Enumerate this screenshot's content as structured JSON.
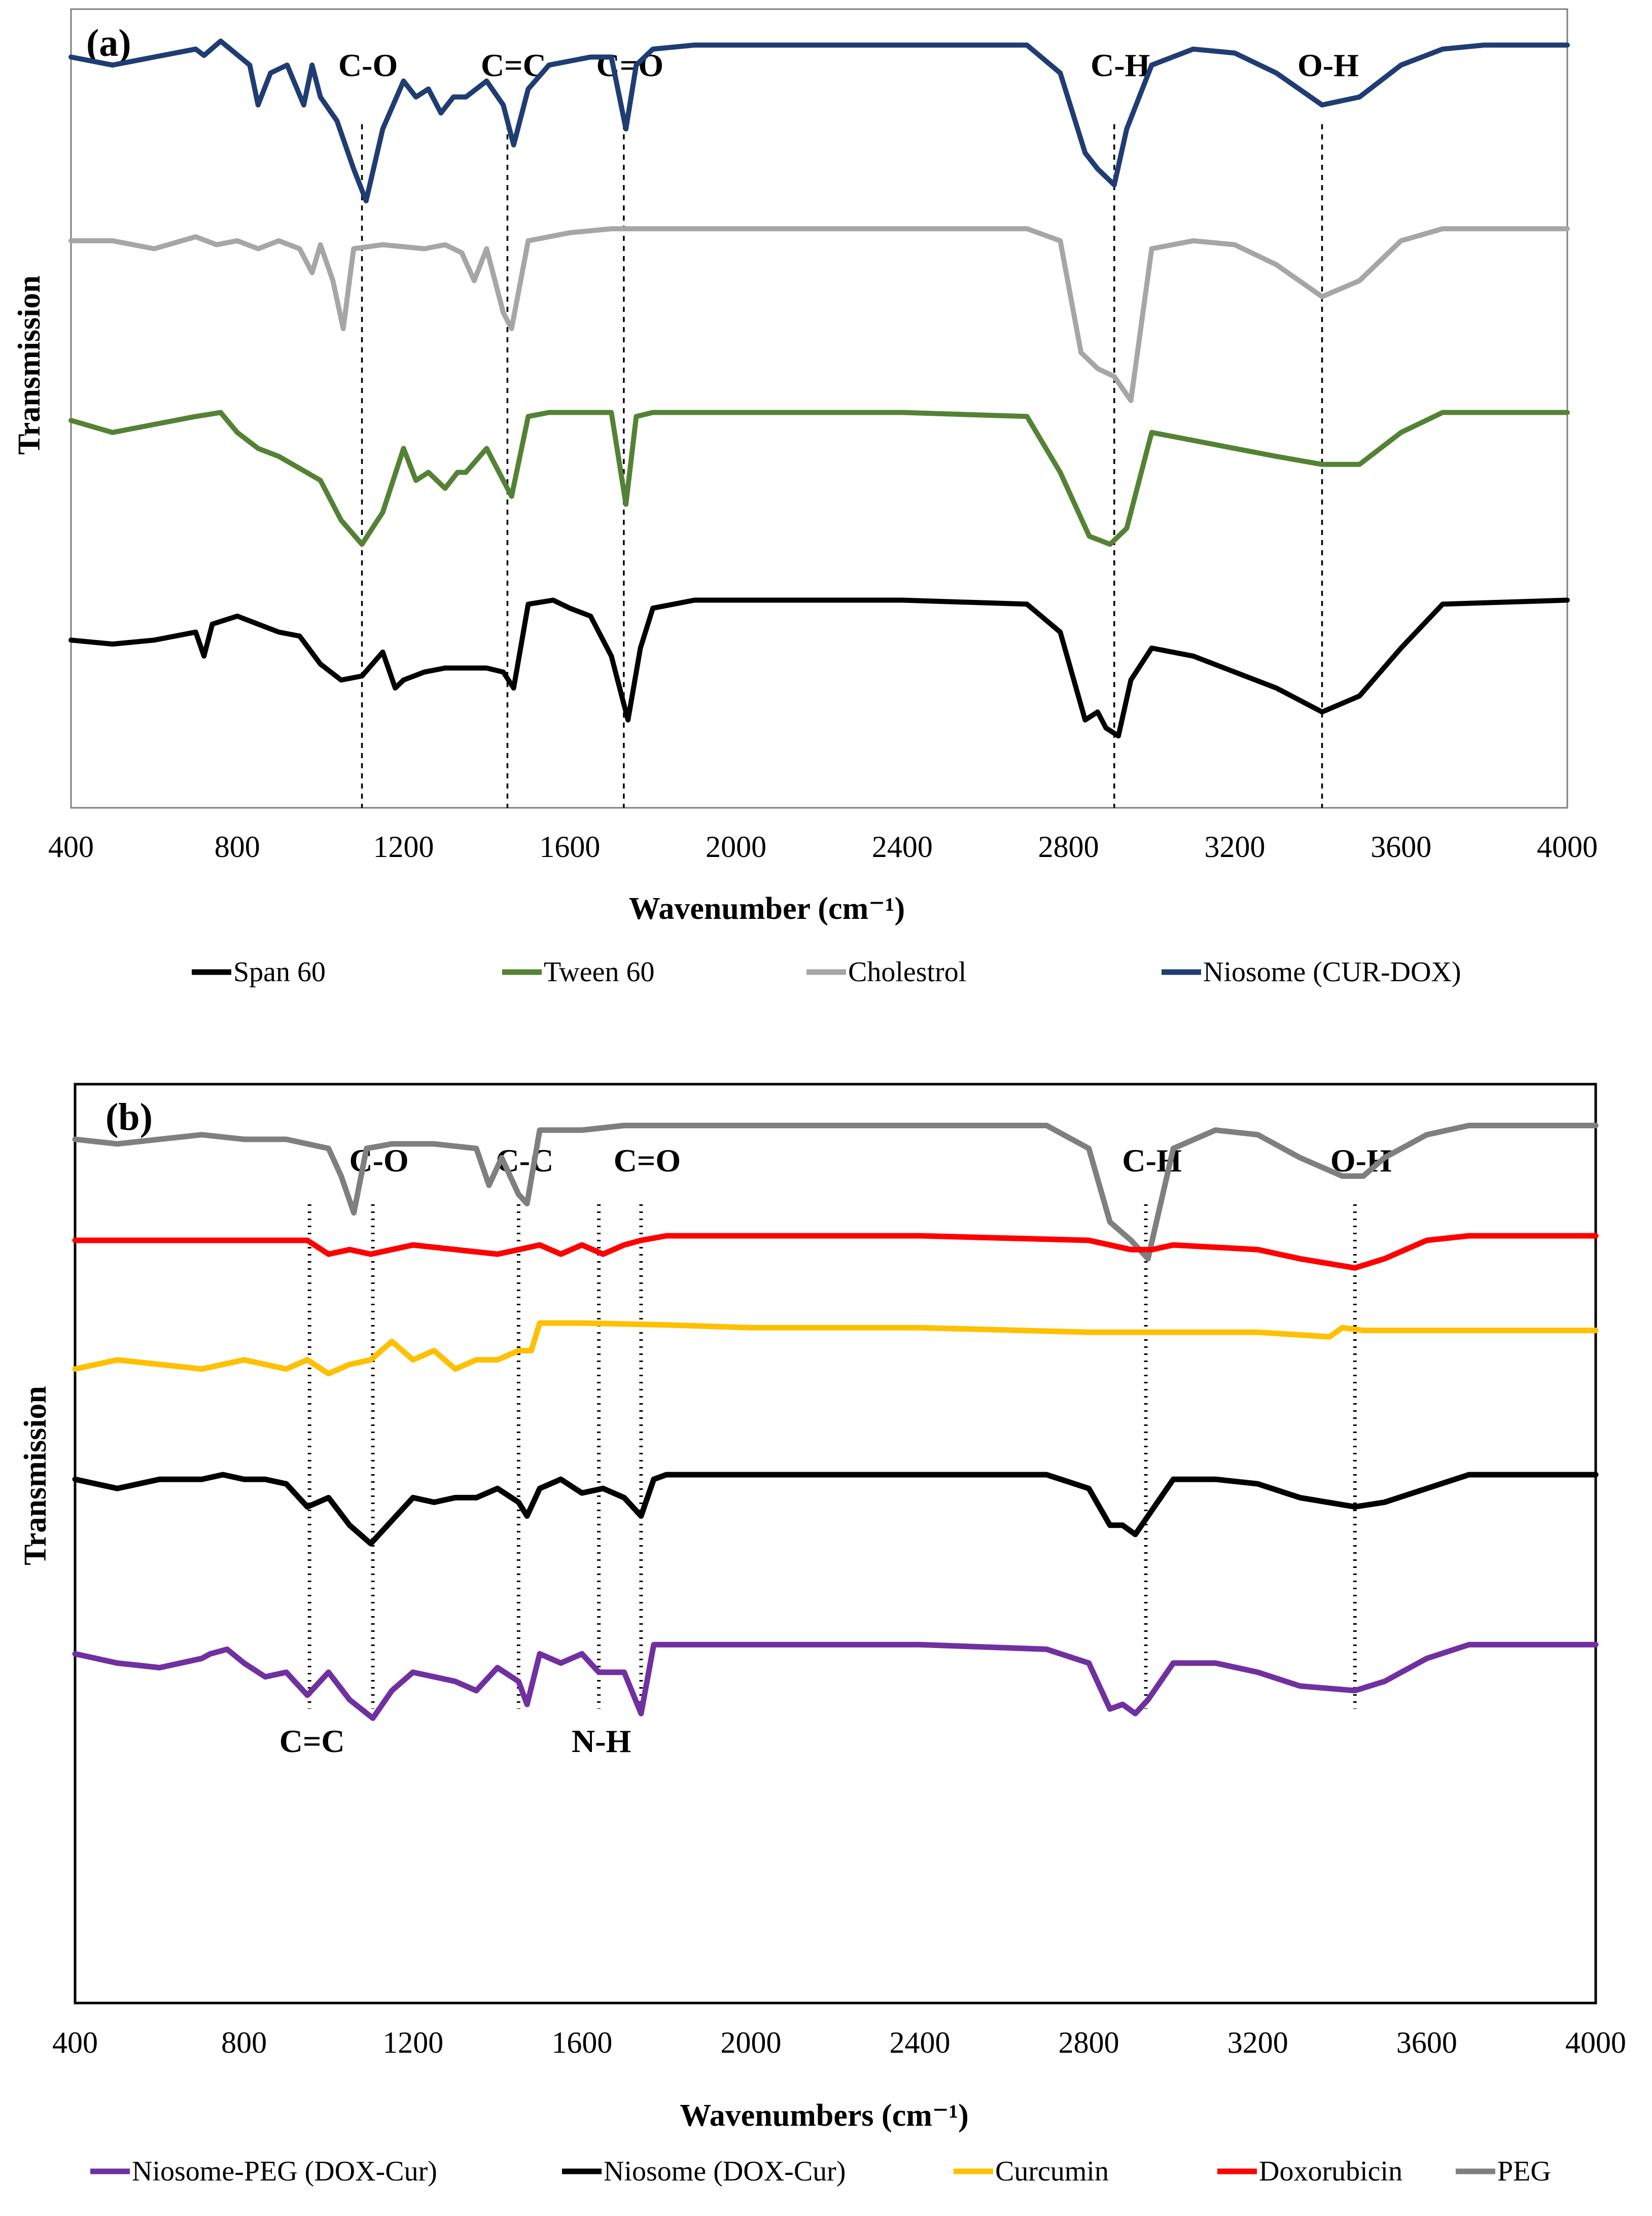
{
  "chart_data": [
    {
      "type": "line",
      "panel": "(a)",
      "xlabel": "Wavenumber (cm⁻¹)",
      "ylabel": "Transmission",
      "xlim": [
        400,
        4000
      ],
      "xticks": [
        400,
        800,
        1200,
        1600,
        2000,
        2400,
        2800,
        3200,
        3600,
        4000
      ],
      "ylim": [
        0,
        100
      ],
      "grid": false,
      "legend_position": "bottom",
      "peak_labels": [
        {
          "label": "C-O",
          "x": 1100,
          "line_style": "dashed"
        },
        {
          "label": "C=C",
          "x": 1450,
          "line_style": "dashed"
        },
        {
          "label": "C=O",
          "x": 1730,
          "line_style": "dashed"
        },
        {
          "label": "C-H",
          "x": 2910,
          "line_style": "dashed"
        },
        {
          "label": "O-H",
          "x": 3410,
          "line_style": "dashed"
        }
      ],
      "series": [
        {
          "name": "Niosome (CUR-DOX)",
          "color": "#1f3d73",
          "x": [
            400,
            500,
            600,
            700,
            720,
            760,
            830,
            850,
            880,
            920,
            960,
            980,
            1000,
            1040,
            1080,
            1110,
            1150,
            1200,
            1230,
            1260,
            1290,
            1320,
            1350,
            1400,
            1440,
            1465,
            1500,
            1550,
            1650,
            1700,
            1735,
            1760,
            1800,
            1900,
            2000,
            2400,
            2700,
            2780,
            2840,
            2870,
            2910,
            2940,
            3000,
            3100,
            3200,
            3300,
            3410,
            3500,
            3600,
            3700,
            3800,
            4000
          ],
          "y": [
            94,
            93,
            94,
            95,
            94.2,
            96,
            93,
            88,
            92,
            93,
            88,
            93,
            89,
            86,
            80,
            76,
            85,
            91,
            89,
            90,
            87,
            89,
            89,
            91,
            88,
            83,
            90,
            93,
            94,
            94,
            85,
            93,
            95,
            95.5,
            95.5,
            95.5,
            95.5,
            92,
            82,
            80,
            78,
            85,
            93,
            95,
            94.5,
            92,
            88,
            89,
            93,
            95,
            95.5,
            95.5
          ]
        },
        {
          "name": "Cholestrol",
          "color": "#a6a6a6",
          "x": [
            400,
            500,
            600,
            700,
            750,
            800,
            850,
            900,
            950,
            980,
            1000,
            1030,
            1055,
            1080,
            1150,
            1250,
            1300,
            1340,
            1370,
            1400,
            1440,
            1460,
            1500,
            1600,
            1700,
            1800,
            2000,
            2400,
            2700,
            2780,
            2830,
            2870,
            2910,
            2950,
            3000,
            3100,
            3200,
            3300,
            3410,
            3500,
            3600,
            3700,
            4000
          ],
          "y": [
            71,
            71,
            70,
            71.5,
            70.5,
            71,
            70,
            71,
            70,
            67,
            70.5,
            66,
            60,
            70,
            70.5,
            70,
            70.5,
            69.5,
            66,
            70,
            62,
            60,
            71,
            72,
            72.5,
            72.5,
            72.5,
            72.5,
            72.5,
            71,
            57,
            55,
            54,
            51,
            70,
            71,
            70.5,
            68,
            64,
            66,
            71,
            72.5,
            72.5
          ]
        },
        {
          "name": "Tween 60",
          "color": "#548235",
          "x": [
            400,
            500,
            600,
            700,
            760,
            800,
            850,
            900,
            950,
            1000,
            1050,
            1100,
            1150,
            1200,
            1230,
            1260,
            1300,
            1330,
            1350,
            1400,
            1440,
            1460,
            1500,
            1550,
            1650,
            1700,
            1735,
            1760,
            1800,
            1900,
            2000,
            2400,
            2700,
            2780,
            2850,
            2900,
            2940,
            3000,
            3100,
            3200,
            3300,
            3410,
            3500,
            3600,
            3700,
            4000
          ],
          "y": [
            48.5,
            47,
            48,
            49,
            49.5,
            47,
            45,
            44,
            42.5,
            41,
            36,
            33,
            37,
            45,
            41,
            42,
            40,
            42,
            42,
            45,
            41,
            39,
            49,
            49.5,
            49.5,
            49.5,
            38,
            49,
            49.5,
            49.5,
            49.5,
            49.5,
            49,
            42,
            34,
            33,
            35,
            47,
            46,
            45,
            44,
            43,
            43,
            47,
            49.5,
            49.5
          ]
        },
        {
          "name": "Span 60",
          "color": "#000000",
          "x": [
            400,
            500,
            600,
            700,
            720,
            740,
            800,
            850,
            900,
            950,
            1000,
            1050,
            1100,
            1150,
            1180,
            1200,
            1250,
            1300,
            1350,
            1400,
            1440,
            1465,
            1500,
            1560,
            1600,
            1650,
            1700,
            1740,
            1770,
            1800,
            1900,
            2000,
            2400,
            2700,
            2780,
            2840,
            2870,
            2890,
            2920,
            2950,
            3000,
            3100,
            3200,
            3300,
            3410,
            3500,
            3600,
            3700,
            4000
          ],
          "y": [
            21,
            20.5,
            21,
            22,
            19,
            23,
            24,
            23,
            22,
            21.5,
            18,
            16,
            16.5,
            19.5,
            15,
            16,
            17,
            17.5,
            17.5,
            17.5,
            17,
            15,
            25.5,
            26,
            25,
            24,
            19,
            11,
            20,
            25,
            26,
            26,
            26,
            25.5,
            22,
            11,
            12,
            10,
            9,
            16,
            20,
            19,
            17,
            15,
            12,
            14,
            20,
            25.5,
            26
          ]
        }
      ]
    },
    {
      "type": "line",
      "panel": "(b)",
      "xlabel": "Wavenumbers (cm⁻¹)",
      "ylabel": "Transmission",
      "xlim": [
        400,
        4000
      ],
      "xticks": [
        400,
        800,
        1200,
        1600,
        2000,
        2400,
        2800,
        3200,
        3600,
        4000
      ],
      "ylim": [
        0,
        100
      ],
      "grid": false,
      "legend_position": "bottom",
      "peak_labels": [
        {
          "label": "C-O",
          "x": 1105,
          "line_style": "dotted",
          "label_position": "top"
        },
        {
          "label": "C-C",
          "x": 1450,
          "line_style": "dotted",
          "label_position": "top"
        },
        {
          "label": "C=O",
          "x": 1740,
          "line_style": "dotted",
          "label_position": "top"
        },
        {
          "label": "C-H",
          "x": 2935,
          "line_style": "dotted",
          "label_position": "top"
        },
        {
          "label": "O-H",
          "x": 3430,
          "line_style": "dotted",
          "label_position": "top"
        },
        {
          "label": "C=C",
          "x": 955,
          "line_style": "dotted",
          "label_position": "bottom"
        },
        {
          "label": "N-H",
          "x": 1640,
          "line_style": "dotted",
          "label_position": "bottom"
        }
      ],
      "series": [
        {
          "name": "PEG",
          "color": "#7f7f7f",
          "x": [
            400,
            500,
            600,
            700,
            800,
            900,
            1000,
            1030,
            1060,
            1090,
            1150,
            1250,
            1350,
            1380,
            1410,
            1450,
            1470,
            1500,
            1600,
            1700,
            1800,
            2000,
            2400,
            2700,
            2800,
            2850,
            2900,
            2940,
            3000,
            3100,
            3200,
            3300,
            3400,
            3450,
            3500,
            3600,
            3700,
            4000
          ],
          "y": [
            94,
            93.5,
            94,
            94.5,
            94,
            94,
            93,
            90,
            86,
            93,
            93.5,
            93.5,
            93,
            89,
            92,
            88,
            87,
            95,
            95,
            95.5,
            95.5,
            95.5,
            95.5,
            95.5,
            93,
            85,
            83,
            81,
            93,
            95,
            94.5,
            92,
            90,
            90,
            92,
            94.5,
            95.5,
            95.5
          ]
        },
        {
          "name": "Doxorubicin",
          "color": "#ff0000",
          "x": [
            400,
            600,
            800,
            950,
            1000,
            1050,
            1100,
            1200,
            1300,
            1400,
            1450,
            1500,
            1550,
            1600,
            1650,
            1700,
            1740,
            1800,
            2000,
            2400,
            2800,
            2900,
            2950,
            3000,
            3200,
            3300,
            3430,
            3500,
            3600,
            3700,
            4000
          ],
          "y": [
            83,
            83,
            83,
            83,
            81.5,
            82,
            81.5,
            82.5,
            82,
            81.5,
            82,
            82.5,
            81.5,
            82.5,
            81.5,
            82.5,
            83,
            83.5,
            83.5,
            83.5,
            83,
            82,
            82,
            82.5,
            82,
            81,
            80,
            81,
            83,
            83.5,
            83.5
          ]
        },
        {
          "name": "Curcumin",
          "color": "#ffc000",
          "x": [
            400,
            500,
            600,
            700,
            800,
            900,
            950,
            1000,
            1050,
            1100,
            1150,
            1200,
            1250,
            1300,
            1350,
            1400,
            1450,
            1480,
            1500,
            1600,
            1800,
            2000,
            2400,
            2800,
            3000,
            3200,
            3370,
            3400,
            3450,
            3600,
            4000
          ],
          "y": [
            69,
            70,
            69.5,
            69,
            70,
            69,
            70,
            68.5,
            69.5,
            70,
            72,
            70,
            71,
            69,
            70,
            70,
            71,
            71,
            74,
            74,
            73.8,
            73.5,
            73.5,
            73,
            73,
            73,
            72.5,
            73.5,
            73.2,
            73.2,
            73.2
          ]
        },
        {
          "name": "Niosome (DOX-Cur)",
          "color": "#000000",
          "x": [
            400,
            500,
            600,
            700,
            750,
            800,
            850,
            900,
            950,
            1000,
            1050,
            1100,
            1150,
            1200,
            1250,
            1300,
            1350,
            1400,
            1450,
            1470,
            1500,
            1550,
            1600,
            1650,
            1700,
            1740,
            1770,
            1800,
            2000,
            2400,
            2700,
            2800,
            2850,
            2880,
            2910,
            2940,
            3000,
            3100,
            3200,
            3300,
            3430,
            3500,
            3600,
            3700,
            4000
          ],
          "y": [
            57,
            56,
            57,
            57,
            57.5,
            57,
            57,
            56.5,
            54,
            55,
            52,
            50,
            52.5,
            55,
            54.5,
            55,
            55,
            56,
            54.5,
            53,
            56,
            57,
            55.5,
            56,
            55,
            53,
            57,
            57.5,
            57.5,
            57.5,
            57.5,
            56,
            52,
            52,
            51,
            53,
            57,
            57,
            56.5,
            55,
            54,
            54.5,
            56,
            57.5,
            57.5
          ]
        },
        {
          "name": "Niosome-PEG (DOX-Cur)",
          "color": "#7030a0",
          "x": [
            400,
            500,
            600,
            700,
            720,
            760,
            800,
            850,
            900,
            950,
            1000,
            1050,
            1105,
            1150,
            1200,
            1250,
            1300,
            1350,
            1400,
            1450,
            1470,
            1500,
            1550,
            1600,
            1640,
            1700,
            1740,
            1770,
            1800,
            2000,
            2400,
            2700,
            2800,
            2850,
            2880,
            2910,
            2940,
            3000,
            3100,
            3200,
            3300,
            3430,
            3500,
            3600,
            3700,
            4000
          ],
          "y": [
            38,
            37,
            36.5,
            37.5,
            38,
            38.5,
            37,
            35.5,
            36,
            33.5,
            36,
            33,
            31,
            34,
            36,
            35.5,
            35,
            34,
            36.5,
            35,
            32.5,
            38,
            37,
            38,
            36,
            36,
            31.5,
            39,
            39,
            39,
            39,
            38.5,
            37,
            32,
            32.5,
            31.5,
            33,
            37,
            37,
            36,
            34.5,
            34,
            35,
            37.5,
            39,
            39
          ]
        }
      ]
    }
  ]
}
